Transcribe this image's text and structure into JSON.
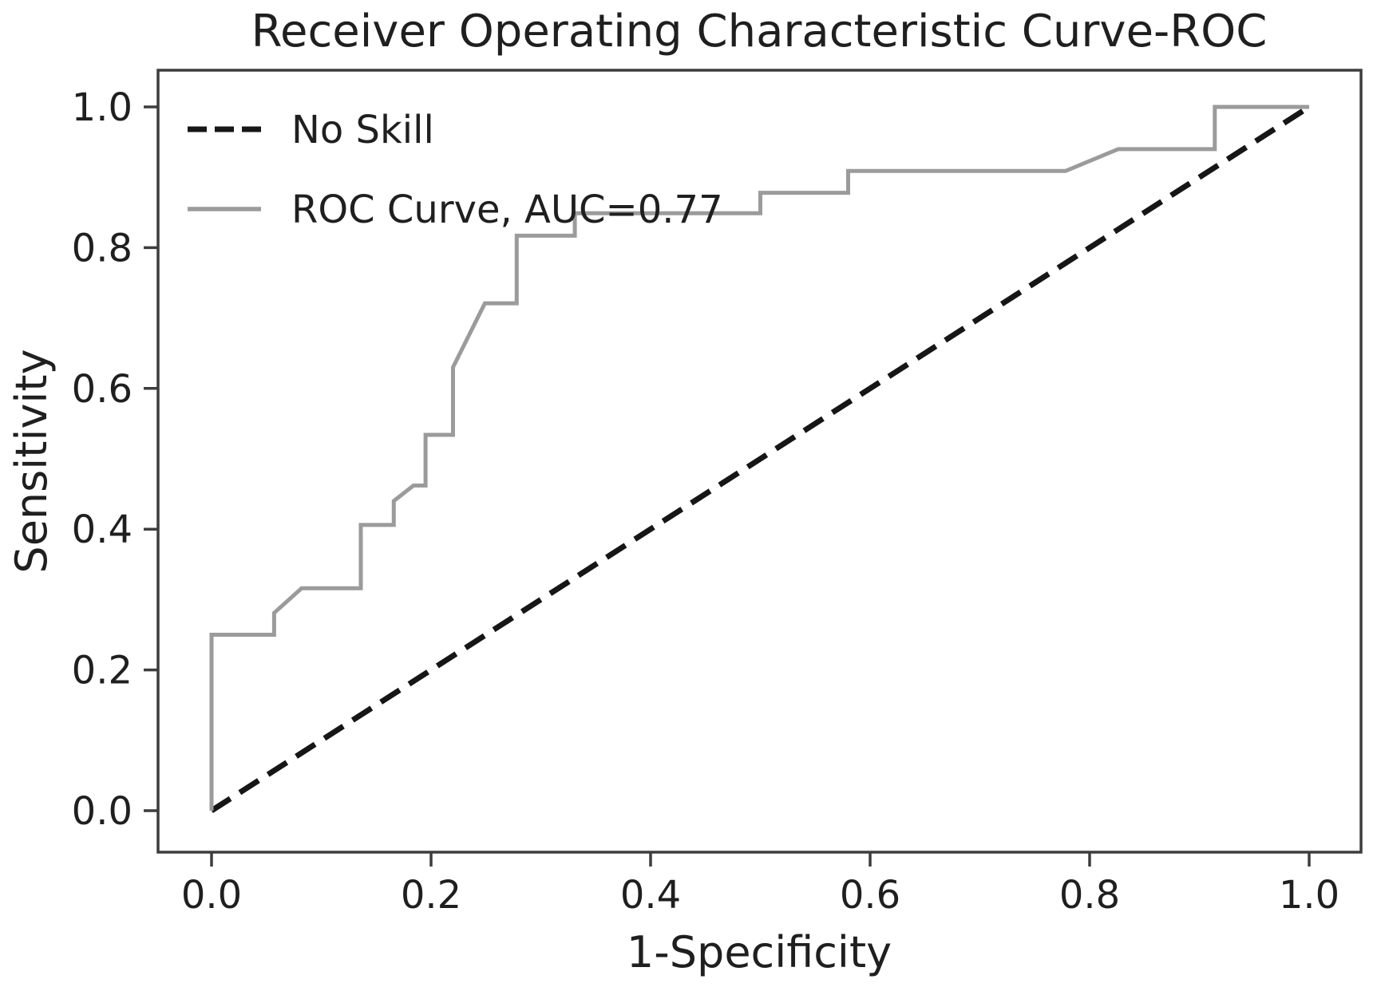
{
  "figure": {
    "background": "#ffffff",
    "frame_color": "#3d3d3d",
    "text_color": "#1f1f1f"
  },
  "chart_data": {
    "type": "line",
    "title": "Receiver Operating Characteristic Curve-ROC",
    "xlabel": "1-Specificity",
    "ylabel": "Sensitivity",
    "xlim": [
      0.0,
      1.0
    ],
    "ylim": [
      0.0,
      1.0
    ],
    "grid": false,
    "legend_position": "upper left",
    "x_ticks": {
      "values": [
        0.0,
        0.2,
        0.4,
        0.6,
        0.8,
        1.0
      ],
      "labels": [
        "0.0",
        "0.2",
        "0.4",
        "0.6",
        "0.8",
        "1.0"
      ]
    },
    "y_ticks": {
      "values": [
        0.0,
        0.2,
        0.4,
        0.6,
        0.8,
        1.0
      ],
      "labels": [
        "0.0",
        "0.2",
        "0.4",
        "0.6",
        "0.8",
        "1.0"
      ]
    },
    "series": [
      {
        "name": "No Skill",
        "style": "dashed",
        "color": "#161616",
        "points": [
          [
            0.0,
            0.0
          ],
          [
            1.0,
            1.0
          ]
        ]
      },
      {
        "name": "ROC Curve, AUC=0.77",
        "style": "solid",
        "color": "#9b9b9b",
        "auc": 0.77,
        "points": [
          [
            0.0,
            0.0
          ],
          [
            0.0,
            0.25
          ],
          [
            0.057,
            0.25
          ],
          [
            0.057,
            0.281
          ],
          [
            0.082,
            0.316
          ],
          [
            0.136,
            0.316
          ],
          [
            0.136,
            0.406
          ],
          [
            0.166,
            0.406
          ],
          [
            0.166,
            0.44
          ],
          [
            0.184,
            0.462
          ],
          [
            0.195,
            0.462
          ],
          [
            0.195,
            0.534
          ],
          [
            0.22,
            0.534
          ],
          [
            0.22,
            0.63
          ],
          [
            0.249,
            0.721
          ],
          [
            0.278,
            0.721
          ],
          [
            0.278,
            0.817
          ],
          [
            0.331,
            0.817
          ],
          [
            0.331,
            0.849
          ],
          [
            0.5,
            0.849
          ],
          [
            0.5,
            0.878
          ],
          [
            0.58,
            0.878
          ],
          [
            0.58,
            0.909
          ],
          [
            0.778,
            0.909
          ],
          [
            0.826,
            0.94
          ],
          [
            0.914,
            0.94
          ],
          [
            0.914,
            1.0
          ],
          [
            1.0,
            1.0
          ]
        ]
      }
    ]
  }
}
